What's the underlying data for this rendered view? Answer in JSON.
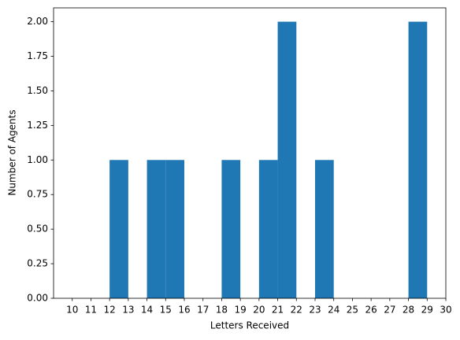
{
  "chart_data": {
    "type": "histogram",
    "xlabel": "Letters Received",
    "ylabel": "Number of Agents",
    "bins": [
      10,
      11,
      12,
      13,
      14,
      15,
      16,
      17,
      18,
      19,
      20,
      21,
      22,
      23,
      24,
      25,
      26,
      27,
      28,
      29,
      30
    ],
    "values": [
      0,
      0,
      1,
      0,
      1,
      1,
      0,
      0,
      1,
      0,
      1,
      2,
      0,
      1,
      0,
      0,
      0,
      0,
      2,
      0
    ],
    "color": "#1f77b4",
    "xlim": [
      9,
      30
    ],
    "ylim": [
      0,
      2.1
    ],
    "xticks": [
      10,
      11,
      12,
      13,
      14,
      15,
      16,
      17,
      18,
      19,
      20,
      21,
      22,
      23,
      24,
      25,
      26,
      27,
      28,
      29,
      30
    ],
    "yticks": [
      {
        "value": 0,
        "label": "0.00"
      },
      {
        "value": 0.25,
        "label": "0.25"
      },
      {
        "value": 0.5,
        "label": "0.50"
      },
      {
        "value": 0.75,
        "label": "0.75"
      },
      {
        "value": 1,
        "label": "1.00"
      },
      {
        "value": 1.25,
        "label": "1.25"
      },
      {
        "value": 1.5,
        "label": "1.50"
      },
      {
        "value": 1.75,
        "label": "1.75"
      },
      {
        "value": 2,
        "label": "2.00"
      }
    ]
  }
}
